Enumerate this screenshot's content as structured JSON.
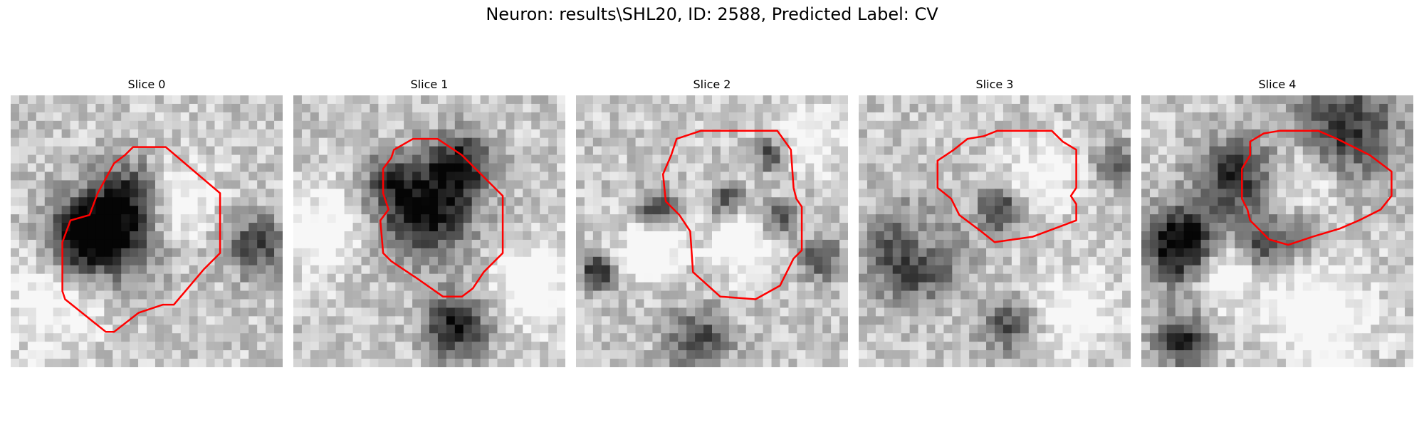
{
  "figure": {
    "title": "Neuron: results\\SHL20, ID: 2588, Predicted Label: CV"
  },
  "slices": [
    {
      "title": "Slice 0",
      "dark_blobs": [
        [
          0.38,
          0.5,
          0.18,
          0.75
        ],
        [
          0.25,
          0.52,
          0.13,
          0.6
        ],
        [
          0.45,
          0.35,
          0.12,
          0.4
        ],
        [
          0.9,
          0.55,
          0.12,
          0.5
        ]
      ],
      "light_blobs": [
        [
          0.6,
          0.4,
          0.15,
          0.35
        ],
        [
          0.15,
          0.75,
          0.2,
          0.25
        ]
      ],
      "contour": [
        [
          0.45,
          0.19
        ],
        [
          0.57,
          0.19
        ],
        [
          0.77,
          0.36
        ],
        [
          0.77,
          0.58
        ],
        [
          0.71,
          0.64
        ],
        [
          0.6,
          0.77
        ],
        [
          0.56,
          0.77
        ],
        [
          0.47,
          0.8
        ],
        [
          0.38,
          0.87
        ],
        [
          0.35,
          0.87
        ],
        [
          0.3,
          0.83
        ],
        [
          0.2,
          0.75
        ],
        [
          0.19,
          0.72
        ],
        [
          0.19,
          0.54
        ],
        [
          0.22,
          0.46
        ],
        [
          0.29,
          0.44
        ],
        [
          0.32,
          0.36
        ],
        [
          0.38,
          0.25
        ],
        [
          0.42,
          0.22
        ]
      ]
    },
    {
      "title": "Slice 1",
      "dark_blobs": [
        [
          0.48,
          0.42,
          0.18,
          0.8
        ],
        [
          0.62,
          0.25,
          0.12,
          0.6
        ],
        [
          0.6,
          0.85,
          0.12,
          0.7
        ],
        [
          0.35,
          0.3,
          0.08,
          0.4
        ]
      ],
      "light_blobs": [
        [
          0.1,
          0.5,
          0.15,
          0.35
        ],
        [
          0.88,
          0.7,
          0.15,
          0.35
        ]
      ],
      "contour": [
        [
          0.37,
          0.2
        ],
        [
          0.44,
          0.16
        ],
        [
          0.53,
          0.16
        ],
        [
          0.62,
          0.22
        ],
        [
          0.77,
          0.37
        ],
        [
          0.77,
          0.58
        ],
        [
          0.7,
          0.65
        ],
        [
          0.66,
          0.71
        ],
        [
          0.62,
          0.74
        ],
        [
          0.55,
          0.74
        ],
        [
          0.45,
          0.67
        ],
        [
          0.39,
          0.63
        ],
        [
          0.36,
          0.61
        ],
        [
          0.33,
          0.58
        ],
        [
          0.32,
          0.46
        ],
        [
          0.35,
          0.42
        ],
        [
          0.33,
          0.36
        ],
        [
          0.33,
          0.27
        ],
        [
          0.36,
          0.23
        ]
      ]
    },
    {
      "title": "Slice 2",
      "dark_blobs": [
        [
          0.3,
          0.42,
          0.07,
          0.6
        ],
        [
          0.55,
          0.38,
          0.06,
          0.55
        ],
        [
          0.75,
          0.45,
          0.06,
          0.5
        ],
        [
          0.08,
          0.65,
          0.06,
          0.7
        ],
        [
          0.45,
          0.9,
          0.12,
          0.5
        ],
        [
          0.9,
          0.6,
          0.08,
          0.5
        ],
        [
          0.72,
          0.22,
          0.06,
          0.55
        ]
      ],
      "light_blobs": [
        [
          0.28,
          0.57,
          0.11,
          0.45
        ],
        [
          0.6,
          0.55,
          0.12,
          0.35
        ],
        [
          0.85,
          0.15,
          0.12,
          0.3
        ]
      ],
      "contour": [
        [
          0.37,
          0.16
        ],
        [
          0.46,
          0.13
        ],
        [
          0.74,
          0.13
        ],
        [
          0.79,
          0.2
        ],
        [
          0.8,
          0.34
        ],
        [
          0.81,
          0.38
        ],
        [
          0.83,
          0.41
        ],
        [
          0.83,
          0.57
        ],
        [
          0.8,
          0.6
        ],
        [
          0.75,
          0.7
        ],
        [
          0.66,
          0.75
        ],
        [
          0.53,
          0.74
        ],
        [
          0.43,
          0.65
        ],
        [
          0.42,
          0.5
        ],
        [
          0.38,
          0.44
        ],
        [
          0.33,
          0.39
        ],
        [
          0.32,
          0.29
        ],
        [
          0.35,
          0.22
        ]
      ]
    },
    {
      "title": "Slice 3",
      "dark_blobs": [
        [
          0.2,
          0.58,
          0.16,
          0.85
        ],
        [
          0.52,
          0.42,
          0.08,
          0.6
        ],
        [
          0.55,
          0.85,
          0.1,
          0.45
        ],
        [
          0.95,
          0.25,
          0.08,
          0.4
        ]
      ],
      "light_blobs": [
        [
          0.22,
          0.55,
          0.11,
          0.5
        ],
        [
          0.68,
          0.3,
          0.13,
          0.3
        ],
        [
          0.8,
          0.8,
          0.15,
          0.3
        ]
      ],
      "contour": [
        [
          0.35,
          0.2
        ],
        [
          0.4,
          0.16
        ],
        [
          0.46,
          0.15
        ],
        [
          0.51,
          0.13
        ],
        [
          0.71,
          0.13
        ],
        [
          0.75,
          0.17
        ],
        [
          0.8,
          0.2
        ],
        [
          0.8,
          0.34
        ],
        [
          0.78,
          0.37
        ],
        [
          0.8,
          0.4
        ],
        [
          0.8,
          0.46
        ],
        [
          0.72,
          0.49
        ],
        [
          0.64,
          0.52
        ],
        [
          0.5,
          0.54
        ],
        [
          0.45,
          0.5
        ],
        [
          0.37,
          0.44
        ],
        [
          0.34,
          0.38
        ],
        [
          0.29,
          0.34
        ],
        [
          0.29,
          0.24
        ]
      ]
    },
    {
      "title": "Slice 4",
      "dark_blobs": [
        [
          0.15,
          0.55,
          0.14,
          0.9
        ],
        [
          0.35,
          0.3,
          0.15,
          0.6
        ],
        [
          0.75,
          0.12,
          0.2,
          0.6
        ],
        [
          0.45,
          0.55,
          0.1,
          0.5
        ],
        [
          0.15,
          0.9,
          0.1,
          0.6
        ],
        [
          0.6,
          0.5,
          0.08,
          0.4
        ]
      ],
      "light_blobs": [
        [
          0.3,
          0.65,
          0.12,
          0.4
        ],
        [
          0.65,
          0.8,
          0.2,
          0.35
        ],
        [
          0.6,
          0.3,
          0.15,
          0.3
        ]
      ],
      "contour": [
        [
          0.4,
          0.17
        ],
        [
          0.45,
          0.14
        ],
        [
          0.51,
          0.13
        ],
        [
          0.65,
          0.13
        ],
        [
          0.72,
          0.16
        ],
        [
          0.84,
          0.22
        ],
        [
          0.92,
          0.28
        ],
        [
          0.92,
          0.37
        ],
        [
          0.88,
          0.42
        ],
        [
          0.8,
          0.46
        ],
        [
          0.73,
          0.49
        ],
        [
          0.63,
          0.52
        ],
        [
          0.54,
          0.55
        ],
        [
          0.47,
          0.53
        ],
        [
          0.44,
          0.5
        ],
        [
          0.4,
          0.46
        ],
        [
          0.39,
          0.42
        ],
        [
          0.37,
          0.38
        ],
        [
          0.37,
          0.27
        ],
        [
          0.4,
          0.22
        ]
      ]
    }
  ]
}
